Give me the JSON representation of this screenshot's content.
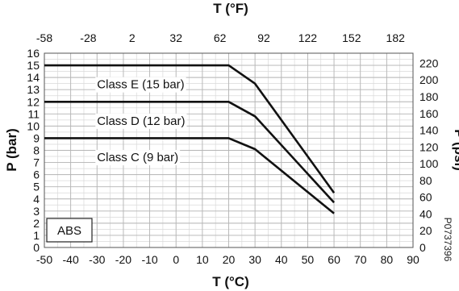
{
  "chart_data": {
    "type": "line",
    "x_bottom_label": "T (°C)",
    "x_top_label": "T (°F)",
    "y_left_label": "P (bar)",
    "y_right_label": "P (psi)",
    "x_bottom_ticks": [
      "-50",
      "-40",
      "-30",
      "-20",
      "-10",
      "0",
      "10",
      "20",
      "30",
      "40",
      "50",
      "60",
      "70",
      "80",
      "90"
    ],
    "x_top_ticks": [
      "-58",
      "-28",
      "2",
      "32",
      "62",
      "92",
      "122",
      "152",
      "182"
    ],
    "y_left_ticks": [
      "0",
      "1",
      "2",
      "3",
      "4",
      "5",
      "6",
      "7",
      "8",
      "9",
      "10",
      "11",
      "12",
      "13",
      "14",
      "15",
      "16"
    ],
    "y_right_ticks": [
      "0",
      "20",
      "40",
      "60",
      "80",
      "100",
      "120",
      "140",
      "160",
      "180",
      "200",
      "220"
    ],
    "xlim": [
      -50,
      90
    ],
    "ylim": [
      0,
      16
    ],
    "y_right_lim_psi": [
      0,
      232
    ],
    "grid": true,
    "series": [
      {
        "name": "Class E (15 bar)",
        "x": [
          -50,
          20,
          30,
          60
        ],
        "y": [
          15,
          15,
          13.5,
          4.5
        ]
      },
      {
        "name": "Class D (12 bar)",
        "x": [
          -50,
          20,
          30,
          60
        ],
        "y": [
          12,
          12,
          10.8,
          3.7
        ]
      },
      {
        "name": "Class C (9 bar)",
        "x": [
          -50,
          20,
          30,
          60
        ],
        "y": [
          9,
          9,
          8.1,
          2.8
        ]
      }
    ],
    "material_label": "ABS",
    "code": "P0737396"
  }
}
